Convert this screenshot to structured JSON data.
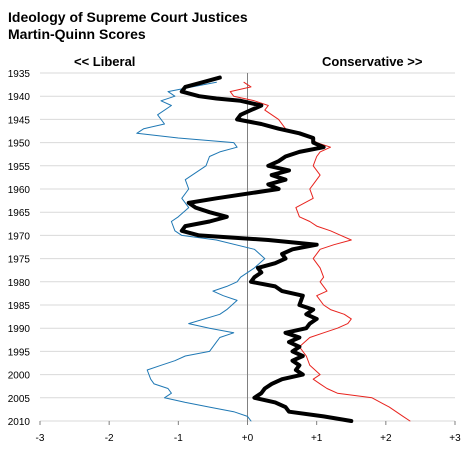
{
  "chart_data": {
    "type": "line",
    "title": "Ideology of Supreme Court Justices",
    "subtitle": "Martin-Quinn Scores",
    "left_label": "<< Liberal",
    "right_label": "Conservative  >>",
    "y_ticks": [
      "1935",
      "1940",
      "1945",
      "1950",
      "1955",
      "1960",
      "1965",
      "1970",
      "1975",
      "1980",
      "1985",
      "1990",
      "1995",
      "2000",
      "2005",
      "2010"
    ],
    "x_ticks": [
      "-3",
      "-2",
      "-1",
      "+0",
      "+1",
      "+2",
      "+3"
    ],
    "xlim": [
      -3,
      3
    ],
    "ylim": [
      1935,
      2010
    ],
    "grid": true,
    "legend": "none",
    "colors": {
      "liberal": "#1f78b4",
      "conservative": "#e8231e",
      "median": "#000000"
    },
    "series": [
      {
        "color": "#e8231e",
        "points": [
          [
            -0.05,
            1937
          ],
          [
            0.05,
            1938
          ],
          [
            -0.25,
            1939
          ],
          [
            -0.2,
            1940
          ],
          [
            0.1,
            1941
          ],
          [
            0.3,
            1942
          ],
          [
            0.25,
            1943
          ],
          [
            0.45,
            1945
          ],
          [
            0.55,
            1947
          ],
          [
            0.9,
            1949
          ],
          [
            1.0,
            1950
          ],
          [
            1.2,
            1951
          ],
          [
            1.05,
            1952
          ],
          [
            1.0,
            1953
          ],
          [
            0.95,
            1955
          ],
          [
            1.05,
            1957
          ],
          [
            0.95,
            1959
          ],
          [
            0.9,
            1960
          ],
          [
            0.95,
            1962
          ],
          [
            0.7,
            1964
          ],
          [
            0.75,
            1966
          ],
          [
            0.9,
            1967
          ],
          [
            1.0,
            1968
          ],
          [
            1.2,
            1969
          ],
          [
            1.35,
            1970
          ],
          [
            1.5,
            1971
          ],
          [
            1.25,
            1972
          ],
          [
            1.05,
            1973
          ],
          [
            0.95,
            1975
          ],
          [
            1.05,
            1977
          ],
          [
            1.1,
            1979
          ],
          [
            1.05,
            1980
          ],
          [
            1.15,
            1982
          ],
          [
            1.0,
            1983
          ],
          [
            1.1,
            1985
          ],
          [
            1.2,
            1986
          ],
          [
            1.4,
            1987
          ],
          [
            1.5,
            1988
          ],
          [
            1.45,
            1989
          ],
          [
            1.3,
            1990
          ],
          [
            1.1,
            1991
          ],
          [
            0.9,
            1992
          ],
          [
            0.75,
            1994
          ],
          [
            0.85,
            1996
          ],
          [
            0.9,
            1998
          ],
          [
            1.05,
            2000
          ],
          [
            0.95,
            2001
          ],
          [
            1.05,
            2002
          ],
          [
            1.15,
            2003
          ],
          [
            1.3,
            2004
          ],
          [
            1.8,
            2005
          ],
          [
            2.05,
            2007
          ],
          [
            2.25,
            2009
          ],
          [
            2.35,
            2010
          ]
        ]
      },
      {
        "color": "#1f78b4",
        "points": [
          [
            -0.45,
            1937
          ],
          [
            -0.8,
            1938
          ],
          [
            -1.15,
            1939
          ],
          [
            -1.05,
            1940
          ],
          [
            -1.25,
            1941
          ],
          [
            -1.1,
            1942
          ],
          [
            -1.3,
            1944
          ],
          [
            -1.2,
            1946
          ],
          [
            -1.5,
            1947
          ],
          [
            -1.6,
            1948
          ],
          [
            -1.0,
            1949
          ],
          [
            -0.2,
            1950
          ],
          [
            -0.15,
            1951
          ],
          [
            -0.4,
            1952
          ],
          [
            -0.55,
            1953
          ],
          [
            -0.6,
            1955
          ],
          [
            -0.7,
            1956
          ],
          [
            -0.9,
            1958
          ],
          [
            -0.85,
            1960
          ],
          [
            -0.95,
            1962
          ],
          [
            -0.85,
            1964
          ],
          [
            -1.0,
            1966
          ],
          [
            -1.1,
            1967
          ],
          [
            -1.05,
            1969
          ],
          [
            -0.95,
            1970
          ],
          [
            -0.45,
            1971
          ],
          [
            0.1,
            1973
          ],
          [
            0.25,
            1975
          ],
          [
            0.1,
            1977
          ],
          [
            -0.1,
            1979
          ],
          [
            -0.15,
            1980
          ],
          [
            -0.3,
            1981
          ],
          [
            -0.5,
            1982
          ],
          [
            -0.35,
            1983
          ],
          [
            -0.15,
            1984
          ],
          [
            -0.3,
            1986
          ],
          [
            -0.4,
            1987
          ],
          [
            -0.85,
            1989
          ],
          [
            -0.55,
            1990
          ],
          [
            -0.2,
            1991
          ],
          [
            -0.4,
            1992
          ],
          [
            -0.45,
            1993
          ],
          [
            -0.55,
            1995
          ],
          [
            -0.9,
            1996
          ],
          [
            -1.05,
            1997
          ],
          [
            -1.25,
            1998
          ],
          [
            -1.45,
            1999
          ],
          [
            -1.4,
            2001
          ],
          [
            -1.35,
            2002
          ],
          [
            -1.15,
            2003
          ],
          [
            -1.1,
            2004
          ],
          [
            -1.2,
            2005
          ],
          [
            -0.9,
            2006
          ],
          [
            -0.55,
            2007
          ],
          [
            -0.2,
            2008
          ],
          [
            0.0,
            2009
          ],
          [
            0.05,
            2010
          ]
        ]
      },
      {
        "color": "#000000",
        "points": [
          [
            -0.4,
            1936
          ],
          [
            -0.65,
            1937
          ],
          [
            -0.9,
            1938
          ],
          [
            -0.95,
            1939
          ],
          [
            -0.7,
            1940
          ],
          [
            -0.45,
            1940.5
          ],
          [
            -0.1,
            1941
          ],
          [
            0.2,
            1942
          ],
          [
            0.05,
            1943
          ],
          [
            -0.1,
            1944
          ],
          [
            -0.15,
            1945
          ],
          [
            0.2,
            1946
          ],
          [
            0.45,
            1947
          ],
          [
            0.75,
            1948
          ],
          [
            0.95,
            1949
          ],
          [
            0.95,
            1950
          ],
          [
            1.1,
            1951
          ],
          [
            0.75,
            1952
          ],
          [
            0.55,
            1953
          ],
          [
            0.45,
            1954
          ],
          [
            0.3,
            1955
          ],
          [
            0.6,
            1956
          ],
          [
            0.35,
            1957
          ],
          [
            0.55,
            1958
          ],
          [
            0.3,
            1959
          ],
          [
            0.45,
            1960
          ],
          [
            -0.45,
            1962
          ],
          [
            -0.85,
            1963
          ],
          [
            -0.75,
            1964
          ],
          [
            -0.55,
            1965
          ],
          [
            -0.3,
            1966
          ],
          [
            -0.55,
            1967
          ],
          [
            -0.9,
            1968
          ],
          [
            -0.95,
            1969
          ],
          [
            -0.7,
            1970
          ],
          [
            0.3,
            1971
          ],
          [
            1.0,
            1972
          ],
          [
            0.65,
            1973
          ],
          [
            0.5,
            1974
          ],
          [
            0.55,
            1975
          ],
          [
            0.4,
            1976
          ],
          [
            0.15,
            1977
          ],
          [
            0.2,
            1978
          ],
          [
            0.1,
            1979
          ],
          [
            0.05,
            1980
          ],
          [
            0.4,
            1981
          ],
          [
            0.5,
            1982
          ],
          [
            0.8,
            1983
          ],
          [
            0.75,
            1985
          ],
          [
            0.95,
            1986
          ],
          [
            0.85,
            1987
          ],
          [
            1.0,
            1988
          ],
          [
            0.9,
            1989
          ],
          [
            0.85,
            1990
          ],
          [
            0.55,
            1991
          ],
          [
            0.75,
            1992
          ],
          [
            0.6,
            1993
          ],
          [
            0.75,
            1994
          ],
          [
            0.65,
            1995
          ],
          [
            0.8,
            1996
          ],
          [
            0.65,
            1997
          ],
          [
            0.75,
            1998
          ],
          [
            0.7,
            1999
          ],
          [
            0.8,
            2000
          ],
          [
            0.5,
            2001
          ],
          [
            0.35,
            2002
          ],
          [
            0.25,
            2003
          ],
          [
            0.2,
            2004
          ],
          [
            0.1,
            2005
          ],
          [
            0.4,
            2006
          ],
          [
            0.55,
            2007
          ],
          [
            0.6,
            2008
          ],
          [
            1.1,
            2009
          ],
          [
            1.5,
            2010
          ]
        ]
      }
    ]
  }
}
